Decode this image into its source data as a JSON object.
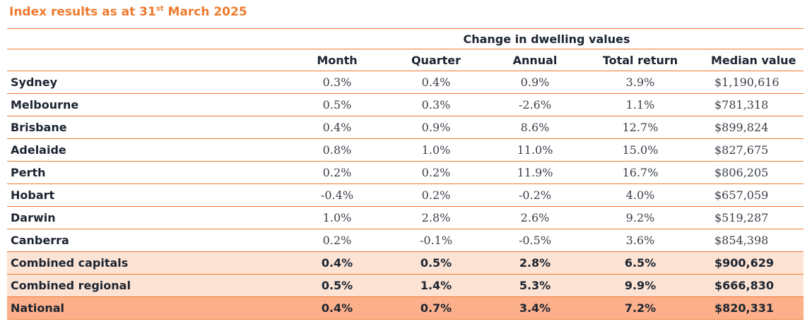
{
  "title": {
    "prefix": "Index results as at 31",
    "superscript": "st",
    "suffix": " March 2025"
  },
  "table": {
    "group_header": "Change in dwelling values",
    "columns": [
      "Month",
      "Quarter",
      "Annual",
      "Total return",
      "Median value"
    ],
    "rows": [
      {
        "name": "Sydney",
        "month": "0.3%",
        "quarter": "0.4%",
        "annual": "0.9%",
        "total_return": "3.9%",
        "median_value": "$1,190,616",
        "style": "plain"
      },
      {
        "name": "Melbourne",
        "month": "0.5%",
        "quarter": "0.3%",
        "annual": "-2.6%",
        "total_return": "1.1%",
        "median_value": "$781,318",
        "style": "plain"
      },
      {
        "name": "Brisbane",
        "month": "0.4%",
        "quarter": "0.9%",
        "annual": "8.6%",
        "total_return": "12.7%",
        "median_value": "$899,824",
        "style": "plain"
      },
      {
        "name": "Adelaide",
        "month": "0.8%",
        "quarter": "1.0%",
        "annual": "11.0%",
        "total_return": "15.0%",
        "median_value": "$827,675",
        "style": "plain"
      },
      {
        "name": "Perth",
        "month": "0.2%",
        "quarter": "0.2%",
        "annual": "11.9%",
        "total_return": "16.7%",
        "median_value": "$806,205",
        "style": "plain"
      },
      {
        "name": "Hobart",
        "month": "-0.4%",
        "quarter": "0.2%",
        "annual": "-0.2%",
        "total_return": "4.0%",
        "median_value": "$657,059",
        "style": "plain"
      },
      {
        "name": "Darwin",
        "month": "1.0%",
        "quarter": "2.8%",
        "annual": "2.6%",
        "total_return": "9.2%",
        "median_value": "$519,287",
        "style": "plain"
      },
      {
        "name": "Canberra",
        "month": "0.2%",
        "quarter": "-0.1%",
        "annual": "-0.5%",
        "total_return": "3.6%",
        "median_value": "$854,398",
        "style": "plain"
      },
      {
        "name": "Combined capitals",
        "month": "0.4%",
        "quarter": "0.5%",
        "annual": "2.8%",
        "total_return": "6.5%",
        "median_value": "$900,629",
        "style": "combined"
      },
      {
        "name": "Combined regional",
        "month": "0.5%",
        "quarter": "1.4%",
        "annual": "5.3%",
        "total_return": "9.9%",
        "median_value": "$666,830",
        "style": "combined"
      },
      {
        "name": "National",
        "month": "0.4%",
        "quarter": "0.7%",
        "annual": "3.4%",
        "total_return": "7.2%",
        "median_value": "$820,331",
        "style": "national"
      }
    ]
  },
  "colors": {
    "accent_orange": "#ee7a2f",
    "combined_row_bg": "#fce3d4",
    "national_row_bg": "#fbb08a",
    "text_dark": "#1c2430"
  }
}
